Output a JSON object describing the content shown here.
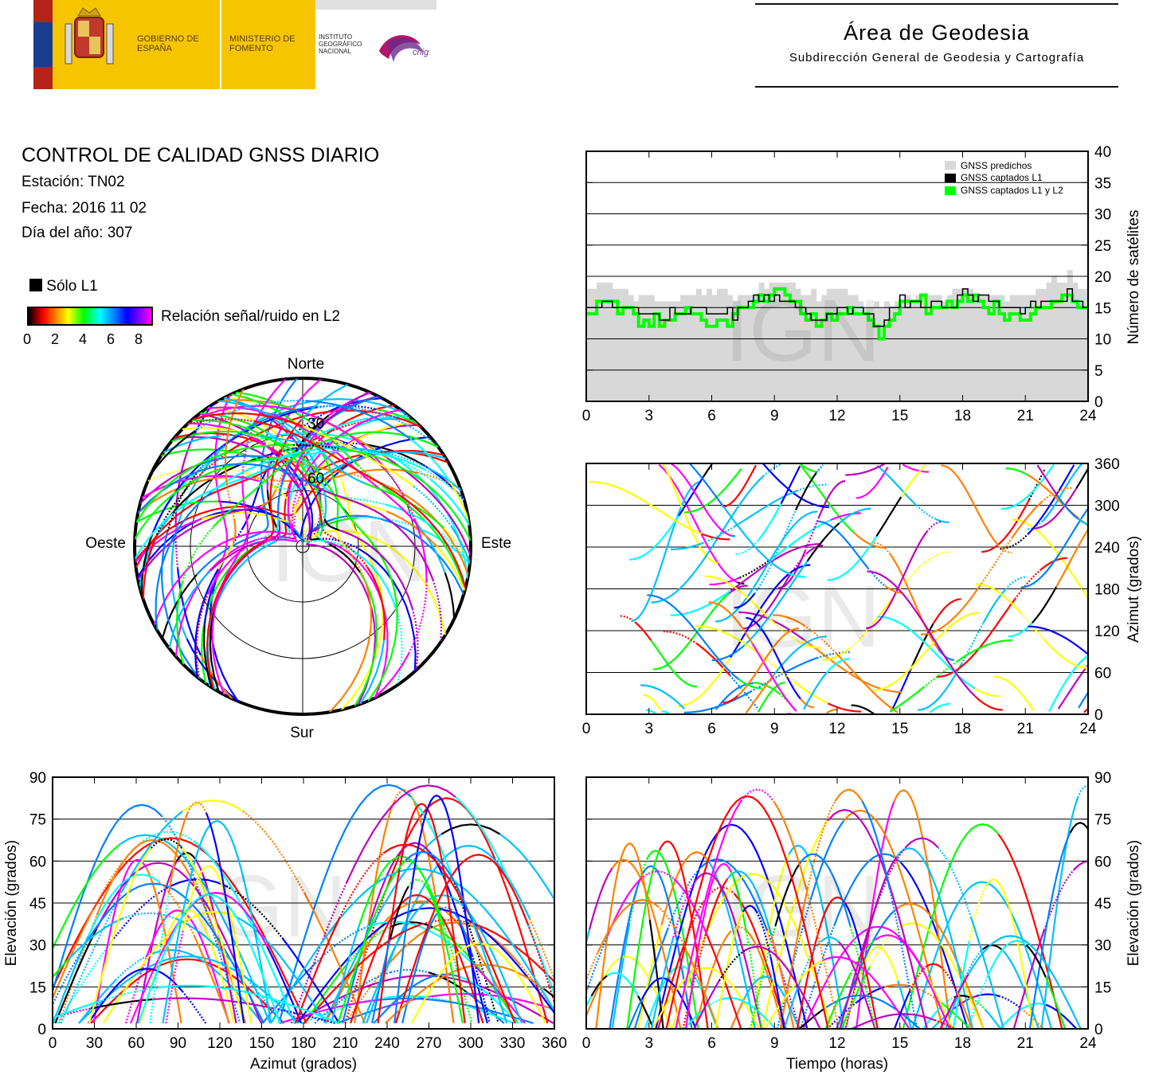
{
  "logos": {
    "gobierno": "GOBIERNO DE ESPAÑA",
    "ministerio": "MINISTERIO DE FOMENTO",
    "instituto": "INSTITUTO GEOGRÁFICO NACIONAL",
    "cnig": "cnig"
  },
  "header": {
    "area": "Área de Geodesia",
    "subdireccion": "Subdirección General de Geodesia y Cartografía",
    "title": "CONTROL DE CALIDAD GNSS DIARIO",
    "station": "Estación: TN02",
    "date": "Fecha: 2016 11 02",
    "doy": "Día del año: 307"
  },
  "legend": {
    "l1_only": "Sólo L1",
    "snr_label": "Relación señal/ruido en L2",
    "snr_ticks": [
      "0",
      "2",
      "4",
      "6",
      "8"
    ],
    "colors": {
      "l1_only": "#000000",
      "predicted": "#d8d8d8",
      "captured_l1": "#000000",
      "captured_l1l2": "#00ff00"
    }
  },
  "watermark": "IGN",
  "chart_data": [
    {
      "type": "polar",
      "id": "skyplot",
      "direction_labels": {
        "north": "Norte",
        "south": "Sur",
        "east": "Este",
        "west": "Oeste"
      },
      "ring_labels": [
        "30",
        "60"
      ],
      "rings_elevation": [
        0,
        30,
        60,
        90
      ],
      "satellite_track_count": 60
    },
    {
      "type": "area",
      "id": "satellite-count",
      "ylabel": "Número de satélites",
      "xlim": [
        0,
        24
      ],
      "ylim": [
        0,
        40
      ],
      "x_ticks": [
        "0",
        "3",
        "6",
        "9",
        "12",
        "15",
        "18",
        "21",
        "24"
      ],
      "y_ticks": [
        "0",
        "5",
        "10",
        "15",
        "20",
        "25",
        "30",
        "35",
        "40"
      ],
      "legend": [
        "GNSS predichos",
        "GNSS captados L1",
        "GNSS captados L1 y L2"
      ],
      "legend_position": "top-right",
      "x": [
        0,
        1,
        2,
        3,
        4,
        5,
        6,
        7,
        8,
        9,
        10,
        11,
        12,
        13,
        14,
        15,
        16,
        17,
        18,
        19,
        20,
        21,
        22,
        23,
        24
      ],
      "series": [
        {
          "name": "GNSS predichos",
          "values": [
            18,
            19,
            17,
            17,
            16,
            17,
            18,
            17,
            18,
            20,
            18,
            17,
            18,
            16,
            15,
            16,
            17,
            17,
            18,
            17,
            16,
            17,
            19,
            20,
            17
          ]
        },
        {
          "name": "GNSS captados L1",
          "values": [
            15,
            16,
            15,
            14,
            14,
            15,
            14,
            14,
            16,
            17,
            16,
            13,
            15,
            15,
            12,
            16,
            16,
            15,
            17,
            16,
            15,
            15,
            16,
            17,
            15
          ]
        },
        {
          "name": "GNSS captados L1 y L2",
          "values": [
            15,
            16,
            14,
            13,
            13,
            15,
            13,
            14,
            16,
            17,
            16,
            12,
            15,
            15,
            11,
            16,
            16,
            15,
            17,
            16,
            14,
            14,
            16,
            17,
            15
          ]
        }
      ]
    },
    {
      "type": "scatter",
      "id": "azimuth-vs-time",
      "ylabel": "Azimut (grados)",
      "xlim": [
        0,
        24
      ],
      "ylim": [
        0,
        360
      ],
      "x_ticks": [
        "0",
        "3",
        "6",
        "9",
        "12",
        "15",
        "18",
        "21",
        "24"
      ],
      "y_ticks": [
        "0",
        "60",
        "120",
        "180",
        "240",
        "300",
        "360"
      ],
      "satellite_track_count": 60
    },
    {
      "type": "scatter",
      "id": "elevation-vs-azimuth",
      "xlabel": "Azimut (grados)",
      "ylabel": "Elevación (grados)",
      "xlim": [
        0,
        360
      ],
      "ylim": [
        0,
        90
      ],
      "x_ticks": [
        "0",
        "30",
        "60",
        "90",
        "120",
        "150",
        "180",
        "210",
        "240",
        "270",
        "300",
        "330",
        "360"
      ],
      "y_ticks": [
        "0",
        "15",
        "30",
        "45",
        "60",
        "75",
        "90"
      ],
      "satellite_track_count": 60
    },
    {
      "type": "scatter",
      "id": "elevation-vs-time",
      "xlabel": "Tiempo (horas)",
      "ylabel": "Elevación (grados)",
      "xlim": [
        0,
        24
      ],
      "ylim": [
        0,
        90
      ],
      "x_ticks": [
        "0",
        "3",
        "6",
        "9",
        "12",
        "15",
        "18",
        "21",
        "24"
      ],
      "y_ticks": [
        "0",
        "15",
        "30",
        "45",
        "60",
        "75",
        "90"
      ],
      "satellite_track_count": 60
    }
  ]
}
